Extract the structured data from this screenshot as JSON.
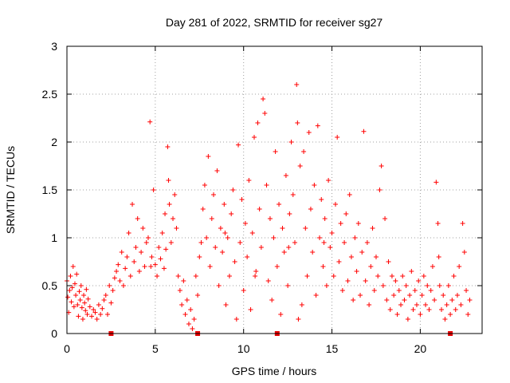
{
  "chart_data": {
    "type": "scatter",
    "title": "Day 281 of 2022, SRMTID for receiver sg27",
    "xlabel": "GPS time / hours",
    "ylabel": "SRMTID / TECUs",
    "xlim": [
      0,
      23.5
    ],
    "ylim": [
      0,
      3
    ],
    "xticks": [
      0,
      5,
      10,
      15,
      20
    ],
    "xtick_labels": [
      "0",
      "5",
      "10",
      "15",
      "20"
    ],
    "yticks": [
      0,
      0.5,
      1,
      1.5,
      2,
      2.5,
      3
    ],
    "ytick_labels": [
      "0",
      "0.5",
      "1",
      "1.5",
      "2",
      "2.5",
      "3"
    ],
    "grid": true,
    "marker": "+",
    "color": "#ff0000",
    "series": [
      {
        "name": "SRMTID",
        "points": [
          [
            0.0,
            0.55
          ],
          [
            0.05,
            0.38
          ],
          [
            0.1,
            0.22
          ],
          [
            0.15,
            0.45
          ],
          [
            0.2,
            0.6
          ],
          [
            0.25,
            0.33
          ],
          [
            0.3,
            0.48
          ],
          [
            0.35,
            0.7
          ],
          [
            0.4,
            0.28
          ],
          [
            0.45,
            0.52
          ],
          [
            0.5,
            0.4
          ],
          [
            0.55,
            0.62
          ],
          [
            0.6,
            0.3
          ],
          [
            0.65,
            0.18
          ],
          [
            0.7,
            0.44
          ],
          [
            0.75,
            0.35
          ],
          [
            0.8,
            0.5
          ],
          [
            0.85,
            0.27
          ],
          [
            0.9,
            0.15
          ],
          [
            0.95,
            0.4
          ],
          [
            1.0,
            0.32
          ],
          [
            1.05,
            0.24
          ],
          [
            1.1,
            0.46
          ],
          [
            1.15,
            0.2
          ],
          [
            1.2,
            0.36
          ],
          [
            1.3,
            0.28
          ],
          [
            1.4,
            0.18
          ],
          [
            1.5,
            0.25
          ],
          [
            1.6,
            0.22
          ],
          [
            1.7,
            0.15
          ],
          [
            1.8,
            0.3
          ],
          [
            1.9,
            0.2
          ],
          [
            2.0,
            0.26
          ],
          [
            2.1,
            0.35
          ],
          [
            2.2,
            0.4
          ],
          [
            2.3,
            0.2
          ],
          [
            2.4,
            0.5
          ],
          [
            2.5,
            0.32
          ],
          [
            2.6,
            0.45
          ],
          [
            2.7,
            0.58
          ],
          [
            2.8,
            0.65
          ],
          [
            2.9,
            0.72
          ],
          [
            3.0,
            0.55
          ],
          [
            3.1,
            0.85
          ],
          [
            3.2,
            0.5
          ],
          [
            3.3,
            0.68
          ],
          [
            3.4,
            0.8
          ],
          [
            3.5,
            1.05
          ],
          [
            3.6,
            0.6
          ],
          [
            3.7,
            1.35
          ],
          [
            3.8,
            0.75
          ],
          [
            3.9,
            0.9
          ],
          [
            4.0,
            1.2
          ],
          [
            4.1,
            0.65
          ],
          [
            4.2,
            0.85
          ],
          [
            4.3,
            1.1
          ],
          [
            4.4,
            0.7
          ],
          [
            4.5,
            0.95
          ],
          [
            4.6,
            1.0
          ],
          [
            4.7,
            2.21
          ],
          [
            4.8,
            0.8
          ],
          [
            4.9,
            1.5
          ],
          [
            5.0,
            0.72
          ],
          [
            5.1,
            0.6
          ],
          [
            5.2,
            0.9
          ],
          [
            5.3,
            0.78
          ],
          [
            5.4,
            1.05
          ],
          [
            5.5,
            0.68
          ],
          [
            5.6,
            0.88
          ],
          [
            5.7,
            1.95
          ],
          [
            5.75,
            1.6
          ],
          [
            5.8,
            1.35
          ],
          [
            5.9,
            0.95
          ],
          [
            6.0,
            1.2
          ],
          [
            6.1,
            1.45
          ],
          [
            6.2,
            1.1
          ],
          [
            6.3,
            0.6
          ],
          [
            6.4,
            0.45
          ],
          [
            6.5,
            0.3
          ],
          [
            6.6,
            0.55
          ],
          [
            6.7,
            0.2
          ],
          [
            6.8,
            0.35
          ],
          [
            6.9,
            0.1
          ],
          [
            7.0,
            0.25
          ],
          [
            7.1,
            0.05
          ],
          [
            7.2,
            0.15
          ],
          [
            7.3,
            0.6
          ],
          [
            7.4,
            0.4
          ],
          [
            7.5,
            0.8
          ],
          [
            7.6,
            0.95
          ],
          [
            7.7,
            1.3
          ],
          [
            7.8,
            1.55
          ],
          [
            7.9,
            1.0
          ],
          [
            8.0,
            1.85
          ],
          [
            8.1,
            0.7
          ],
          [
            8.2,
            1.2
          ],
          [
            8.3,
            1.45
          ],
          [
            8.4,
            0.9
          ],
          [
            8.5,
            1.7
          ],
          [
            8.6,
            0.5
          ],
          [
            8.7,
            1.1
          ],
          [
            8.8,
            0.85
          ],
          [
            8.9,
            1.35
          ],
          [
            9.0,
            0.3
          ],
          [
            9.1,
            1.0
          ],
          [
            9.2,
            0.6
          ],
          [
            9.3,
            1.25
          ],
          [
            9.4,
            1.5
          ],
          [
            9.5,
            0.75
          ],
          [
            9.6,
            0.15
          ],
          [
            9.7,
            1.97
          ],
          [
            9.8,
            0.95
          ],
          [
            9.9,
            1.4
          ],
          [
            10.0,
            0.45
          ],
          [
            10.1,
            1.15
          ],
          [
            10.2,
            0.8
          ],
          [
            10.3,
            1.6
          ],
          [
            10.4,
            0.25
          ],
          [
            10.5,
            1.05
          ],
          [
            10.6,
            2.05
          ],
          [
            10.7,
            0.65
          ],
          [
            10.8,
            2.2
          ],
          [
            10.9,
            1.3
          ],
          [
            11.0,
            0.9
          ],
          [
            11.1,
            2.45
          ],
          [
            11.2,
            2.3
          ],
          [
            11.3,
            1.55
          ],
          [
            11.4,
            0.55
          ],
          [
            11.5,
            1.2
          ],
          [
            11.6,
            0.35
          ],
          [
            11.7,
            1.0
          ],
          [
            11.8,
            1.9
          ],
          [
            11.9,
            0.7
          ],
          [
            12.0,
            1.35
          ],
          [
            12.1,
            0.2
          ],
          [
            12.2,
            1.1
          ],
          [
            12.3,
            0.85
          ],
          [
            12.4,
            1.65
          ],
          [
            12.5,
            0.5
          ],
          [
            12.6,
            1.25
          ],
          [
            12.7,
            2.0
          ],
          [
            12.8,
            1.45
          ],
          [
            12.9,
            0.95
          ],
          [
            13.0,
            2.6
          ],
          [
            13.05,
            2.2
          ],
          [
            13.1,
            0.15
          ],
          [
            13.2,
            1.75
          ],
          [
            13.3,
            0.3
          ],
          [
            13.4,
            1.9
          ],
          [
            13.5,
            1.1
          ],
          [
            13.6,
            0.6
          ],
          [
            13.7,
            2.1
          ],
          [
            13.8,
            1.3
          ],
          [
            13.9,
            0.85
          ],
          [
            14.0,
            1.55
          ],
          [
            14.1,
            0.4
          ],
          [
            14.2,
            2.17
          ],
          [
            14.3,
            1.0
          ],
          [
            14.4,
            1.4
          ],
          [
            14.5,
            0.7
          ],
          [
            14.6,
            1.2
          ],
          [
            14.7,
            0.5
          ],
          [
            14.8,
            1.6
          ],
          [
            14.9,
            0.9
          ],
          [
            15.0,
            1.05
          ],
          [
            15.1,
            0.6
          ],
          [
            15.2,
            1.35
          ],
          [
            15.3,
            2.05
          ],
          [
            15.4,
            0.75
          ],
          [
            15.5,
            1.15
          ],
          [
            15.6,
            0.45
          ],
          [
            15.7,
            0.95
          ],
          [
            15.8,
            1.25
          ],
          [
            15.9,
            0.55
          ],
          [
            16.0,
            1.45
          ],
          [
            16.1,
            0.8
          ],
          [
            16.2,
            0.35
          ],
          [
            16.3,
            1.0
          ],
          [
            16.4,
            0.65
          ],
          [
            16.5,
            1.15
          ],
          [
            16.6,
            0.4
          ],
          [
            16.7,
            0.85
          ],
          [
            16.8,
            2.11
          ],
          [
            16.9,
            0.55
          ],
          [
            17.0,
            0.95
          ],
          [
            17.1,
            0.3
          ],
          [
            17.2,
            0.7
          ],
          [
            17.3,
            1.1
          ],
          [
            17.4,
            0.45
          ],
          [
            17.5,
            0.8
          ],
          [
            17.6,
            0.6
          ],
          [
            17.7,
            1.5
          ],
          [
            17.8,
            1.75
          ],
          [
            17.9,
            0.5
          ],
          [
            18.0,
            1.2
          ],
          [
            18.1,
            0.35
          ],
          [
            18.2,
            0.75
          ],
          [
            18.3,
            0.25
          ],
          [
            18.4,
            0.6
          ],
          [
            18.5,
            0.4
          ],
          [
            18.6,
            0.55
          ],
          [
            18.7,
            0.2
          ],
          [
            18.8,
            0.45
          ],
          [
            18.9,
            0.3
          ],
          [
            19.0,
            0.6
          ],
          [
            19.1,
            0.35
          ],
          [
            19.2,
            0.5
          ],
          [
            19.3,
            0.15
          ],
          [
            19.4,
            0.4
          ],
          [
            19.5,
            0.65
          ],
          [
            19.6,
            0.25
          ],
          [
            19.7,
            0.45
          ],
          [
            19.8,
            0.3
          ],
          [
            19.9,
            0.55
          ],
          [
            20.0,
            0.2
          ],
          [
            20.1,
            0.4
          ],
          [
            20.2,
            0.6
          ],
          [
            20.3,
            0.3
          ],
          [
            20.4,
            0.5
          ],
          [
            20.5,
            0.25
          ],
          [
            20.6,
            0.45
          ],
          [
            20.7,
            0.7
          ],
          [
            20.8,
            0.35
          ],
          [
            20.9,
            1.58
          ],
          [
            21.0,
            1.15
          ],
          [
            21.05,
            0.8
          ],
          [
            21.1,
            0.5
          ],
          [
            21.2,
            0.25
          ],
          [
            21.3,
            0.4
          ],
          [
            21.4,
            0.15
          ],
          [
            21.5,
            0.3
          ],
          [
            21.6,
            0.5
          ],
          [
            21.7,
            0.2
          ],
          [
            21.8,
            0.35
          ],
          [
            21.9,
            0.6
          ],
          [
            22.0,
            0.25
          ],
          [
            22.1,
            0.4
          ],
          [
            22.2,
            0.7
          ],
          [
            22.3,
            0.3
          ],
          [
            22.4,
            1.15
          ],
          [
            22.5,
            0.85
          ],
          [
            22.6,
            0.45
          ],
          [
            22.7,
            0.2
          ],
          [
            22.8,
            0.35
          ],
          [
            4.75,
            0.7
          ],
          [
            5.55,
            1.25
          ],
          [
            8.95,
            1.05
          ],
          [
            10.65,
            0.6
          ],
          [
            12.55,
            0.9
          ],
          [
            14.55,
            0.95
          ]
        ]
      }
    ],
    "axis_markers_x": [
      2.5,
      7.4,
      11.9,
      21.7
    ]
  }
}
